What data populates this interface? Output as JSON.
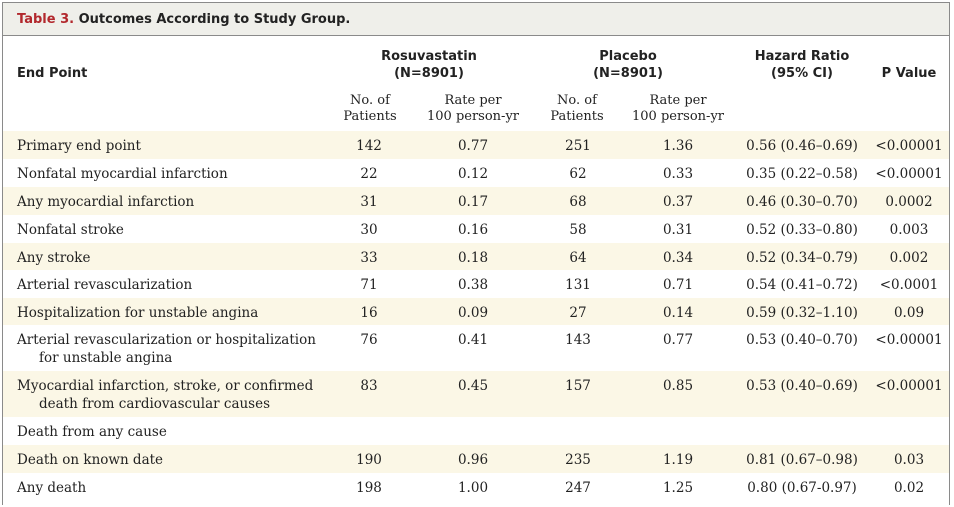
{
  "table": {
    "label": "Table 3.",
    "title": " Outcomes According to Study Group.",
    "headers": {
      "end_point": "End Point",
      "rosuvastatin": "Rosuvastatin",
      "rosuvastatin_n": "(N=8901)",
      "placebo": "Placebo",
      "placebo_n": "(N=8901)",
      "hazard_ratio": "Hazard Ratio",
      "hazard_ci": "(95% CI)",
      "p_value": "P Value"
    },
    "subheaders": {
      "no_of": "No. of",
      "patients": "Patients",
      "rate_per": "Rate per",
      "person_yr": "100 person-yr"
    },
    "rows": [
      {
        "end_point": "Primary end point",
        "cont": "",
        "n1": "142",
        "r1": "0.77",
        "n2": "251",
        "r2": "1.36",
        "hr": "0.56 (0.46–0.69)",
        "p": "<0.00001"
      },
      {
        "end_point": "Nonfatal myocardial infarction",
        "cont": "",
        "n1": "22",
        "r1": "0.12",
        "n2": "62",
        "r2": "0.33",
        "hr": "0.35 (0.22–0.58)",
        "p": "<0.00001"
      },
      {
        "end_point": "Any myocardial infarction",
        "cont": "",
        "n1": "31",
        "r1": "0.17",
        "n2": "68",
        "r2": "0.37",
        "hr": "0.46 (0.30–0.70)",
        "p": "0.0002"
      },
      {
        "end_point": "Nonfatal stroke",
        "cont": "",
        "n1": "30",
        "r1": "0.16",
        "n2": "58",
        "r2": "0.31",
        "hr": "0.52 (0.33–0.80)",
        "p": "0.003"
      },
      {
        "end_point": "Any stroke",
        "cont": "",
        "n1": "33",
        "r1": "0.18",
        "n2": "64",
        "r2": "0.34",
        "hr": "0.52 (0.34–0.79)",
        "p": "0.002"
      },
      {
        "end_point": "Arterial revascularization",
        "cont": "",
        "n1": "71",
        "r1": "0.38",
        "n2": "131",
        "r2": "0.71",
        "hr": "0.54 (0.41–0.72)",
        "p": "<0.0001"
      },
      {
        "end_point": "Hospitalization for unstable angina",
        "cont": "",
        "n1": "16",
        "r1": "0.09",
        "n2": "27",
        "r2": "0.14",
        "hr": "0.59 (0.32–1.10)",
        "p": "0.09"
      },
      {
        "end_point": "Arterial revascularization or hospitalization",
        "cont": "for unstable angina",
        "n1": "76",
        "r1": "0.41",
        "n2": "143",
        "r2": "0.77",
        "hr": "0.53 (0.40–0.70)",
        "p": "<0.00001"
      },
      {
        "end_point": "Myocardial infarction, stroke, or confirmed",
        "cont": "death from cardiovascular causes",
        "n1": "83",
        "r1": "0.45",
        "n2": "157",
        "r2": "0.85",
        "hr": "0.53 (0.40–0.69)",
        "p": "<0.00001"
      },
      {
        "end_point": "Death from any cause",
        "cont": "",
        "n1": "",
        "r1": "",
        "n2": "",
        "r2": "",
        "hr": "",
        "p": ""
      },
      {
        "end_point": "Death on known date",
        "cont": "",
        "n1": "190",
        "r1": "0.96",
        "n2": "235",
        "r2": "1.19",
        "hr": "0.81 (0.67–0.98)",
        "p": "0.03"
      },
      {
        "end_point": "Any death",
        "cont": "",
        "n1": "198",
        "r1": "1.00",
        "n2": "247",
        "r2": "1.25",
        "hr": "0.80 (0.67-0.97)",
        "p": "0.02"
      }
    ]
  },
  "colors": {
    "label": "#b2282d",
    "title_background": "#efefea",
    "row_shade": "#fbf7e6",
    "border": "#8a8a8a"
  }
}
